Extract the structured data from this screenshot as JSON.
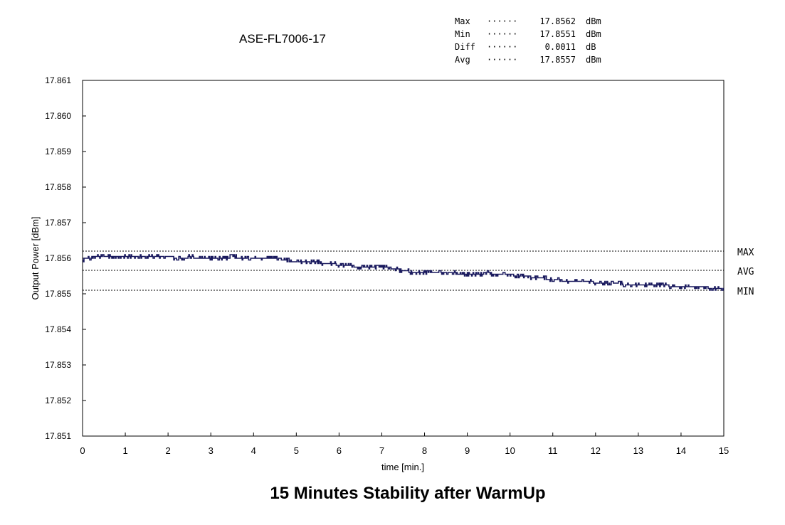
{
  "chart_data": {
    "type": "line",
    "title": "ASE-FL7006-17",
    "caption": "15 Minutes Stability after WarmUp",
    "xlabel": "time [min.]",
    "ylabel": "Output Power [dBm]",
    "xlim": [
      0,
      15
    ],
    "ylim": [
      17.851,
      17.861
    ],
    "x_ticks": [
      "0",
      "1",
      "2",
      "3",
      "4",
      "5",
      "6",
      "7",
      "8",
      "9",
      "10",
      "11",
      "12",
      "13",
      "14",
      "15"
    ],
    "y_ticks": [
      "17.861",
      "17.860",
      "17.859",
      "17.858",
      "17.857",
      "17.856",
      "17.855",
      "17.854",
      "17.853",
      "17.852",
      "17.851"
    ],
    "grid": false,
    "stats": [
      {
        "label": "Max",
        "dots": "······",
        "value": "17.8562",
        "unit": "dBm"
      },
      {
        "label": "Min",
        "dots": "······",
        "value": "17.8551",
        "unit": "dBm"
      },
      {
        "label": "Diff",
        "dots": "······",
        "value": "0.0011",
        "unit": "dB"
      },
      {
        "label": "Avg",
        "dots": "······",
        "value": "17.8557",
        "unit": "dBm"
      }
    ],
    "reference_lines": [
      {
        "name": "MAX",
        "value": 17.8562
      },
      {
        "name": "AVG",
        "value": 17.85566
      },
      {
        "name": "MIN",
        "value": 17.8551
      }
    ],
    "series": [
      {
        "name": "Output Power",
        "color": "#1a1a5e",
        "x": [
          0,
          0.25,
          0.5,
          0.75,
          1,
          1.25,
          1.5,
          1.75,
          2,
          2.25,
          2.5,
          2.75,
          3,
          3.25,
          3.5,
          3.75,
          4,
          4.25,
          4.5,
          4.75,
          5,
          5.25,
          5.5,
          5.75,
          6,
          6.25,
          6.5,
          6.75,
          7,
          7.25,
          7.5,
          7.75,
          8,
          8.25,
          8.5,
          8.75,
          9,
          9.25,
          9.5,
          9.75,
          10,
          10.25,
          10.5,
          10.75,
          11,
          11.25,
          11.5,
          11.75,
          12,
          12.25,
          12.5,
          12.75,
          13,
          13.25,
          13.5,
          13.75,
          14,
          14.25,
          14.5,
          14.75,
          15
        ],
        "values": [
          17.85597,
          17.85602,
          17.85605,
          17.85603,
          17.85606,
          17.85604,
          17.85607,
          17.85603,
          17.85604,
          17.85601,
          17.85603,
          17.85602,
          17.856,
          17.85601,
          17.85603,
          17.85602,
          17.856,
          17.85602,
          17.85601,
          17.85595,
          17.8559,
          17.85588,
          17.85589,
          17.85584,
          17.85582,
          17.85578,
          17.85576,
          17.85573,
          17.85575,
          17.85572,
          17.85565,
          17.8556,
          17.85558,
          17.8556,
          17.85561,
          17.85557,
          17.85556,
          17.85557,
          17.85558,
          17.85554,
          17.85553,
          17.85551,
          17.85547,
          17.85544,
          17.8554,
          17.85537,
          17.85535,
          17.85534,
          17.85532,
          17.8553,
          17.85528,
          17.85527,
          17.85526,
          17.85524,
          17.85525,
          17.85522,
          17.8552,
          17.85519,
          17.85518,
          17.85517,
          17.85515
        ]
      }
    ]
  }
}
